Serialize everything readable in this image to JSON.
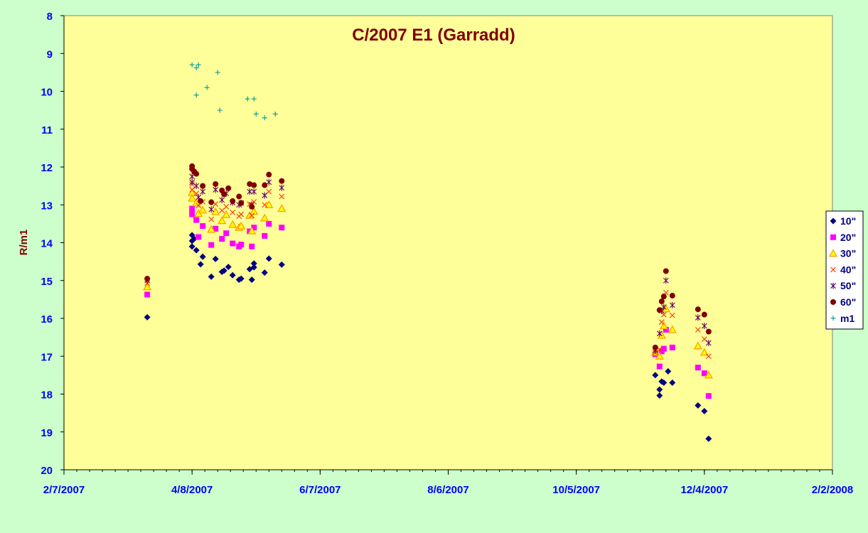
{
  "colors": {
    "chart_area": "#ccffcc",
    "plot_area": "#ffff99",
    "title": "#800000",
    "ylabel": "#800000",
    "ticks": "#0000ff",
    "axis": "#000000"
  },
  "chart_data": {
    "type": "scatter",
    "title": "C/2007 E1 (Garradd)",
    "xlabel": "",
    "ylabel": "R/m1",
    "x_axis": {
      "type": "date",
      "min": "2007-02-07",
      "max": "2008-02-02",
      "ticks": [
        "2/7/2007",
        "4/8/2007",
        "6/7/2007",
        "8/6/2007",
        "10/5/2007",
        "12/4/2007",
        "2/2/2008"
      ]
    },
    "y_axis": {
      "min": 8,
      "max": 20,
      "reversed": true,
      "ticks": [
        "8",
        "9",
        "10",
        "11",
        "12",
        "13",
        "14",
        "15",
        "16",
        "17",
        "18",
        "19",
        "20"
      ]
    },
    "grid": false,
    "legend_position": "right",
    "series": [
      {
        "name": "10\"",
        "color": "#000080",
        "marker": "diamond",
        "points": [
          [
            "2007-03-18",
            15.97
          ],
          [
            "2007-04-08",
            13.8
          ],
          [
            "2007-04-08",
            13.95
          ],
          [
            "2007-04-08",
            14.1
          ],
          [
            "2007-04-09",
            13.9
          ],
          [
            "2007-04-10",
            14.2
          ],
          [
            "2007-04-12",
            14.57
          ],
          [
            "2007-04-13",
            14.37
          ],
          [
            "2007-04-17",
            14.9
          ],
          [
            "2007-04-19",
            14.43
          ],
          [
            "2007-04-22",
            14.77
          ],
          [
            "2007-04-23",
            14.74
          ],
          [
            "2007-04-25",
            14.64
          ],
          [
            "2007-04-27",
            14.86
          ],
          [
            "2007-04-30",
            14.98
          ],
          [
            "2007-05-01",
            14.95
          ],
          [
            "2007-05-05",
            14.7
          ],
          [
            "2007-05-06",
            14.98
          ],
          [
            "2007-05-07",
            14.65
          ],
          [
            "2007-05-07",
            14.55
          ],
          [
            "2007-05-12",
            14.79
          ],
          [
            "2007-05-14",
            14.42
          ],
          [
            "2007-05-20",
            14.58
          ],
          [
            "2007-11-11",
            17.5
          ],
          [
            "2007-11-13",
            18.04
          ],
          [
            "2007-11-13",
            17.88
          ],
          [
            "2007-11-14",
            17.67
          ],
          [
            "2007-11-15",
            17.7
          ],
          [
            "2007-11-17",
            17.4
          ],
          [
            "2007-11-19",
            17.7
          ],
          [
            "2007-12-01",
            18.3
          ],
          [
            "2007-12-04",
            18.45
          ],
          [
            "2007-12-06",
            19.18
          ]
        ]
      },
      {
        "name": "20\"",
        "color": "#ff00ff",
        "marker": "square",
        "points": [
          [
            "2007-03-18",
            15.37
          ],
          [
            "2007-04-08",
            13.1
          ],
          [
            "2007-04-08",
            13.25
          ],
          [
            "2007-04-10",
            13.4
          ],
          [
            "2007-04-11",
            13.85
          ],
          [
            "2007-04-13",
            13.56
          ],
          [
            "2007-04-17",
            14.06
          ],
          [
            "2007-04-19",
            13.63
          ],
          [
            "2007-04-22",
            13.9
          ],
          [
            "2007-04-24",
            13.75
          ],
          [
            "2007-04-27",
            14.02
          ],
          [
            "2007-04-30",
            14.1
          ],
          [
            "2007-05-01",
            14.05
          ],
          [
            "2007-05-05",
            13.7
          ],
          [
            "2007-05-06",
            14.1
          ],
          [
            "2007-05-07",
            13.6
          ],
          [
            "2007-05-12",
            13.82
          ],
          [
            "2007-05-14",
            13.5
          ],
          [
            "2007-05-20",
            13.6
          ],
          [
            "2007-11-11",
            16.95
          ],
          [
            "2007-11-13",
            17.27
          ],
          [
            "2007-11-14",
            16.87
          ],
          [
            "2007-11-15",
            16.8
          ],
          [
            "2007-11-16",
            16.3
          ],
          [
            "2007-11-19",
            16.77
          ],
          [
            "2007-12-01",
            17.3
          ],
          [
            "2007-12-04",
            17.45
          ],
          [
            "2007-12-06",
            18.05
          ]
        ]
      },
      {
        "name": "30\"",
        "color": "#ff9900",
        "fill": "#ffff00",
        "marker": "triangle",
        "points": [
          [
            "2007-03-18",
            15.17
          ],
          [
            "2007-04-08",
            12.68
          ],
          [
            "2007-04-08",
            12.83
          ],
          [
            "2007-04-10",
            12.95
          ],
          [
            "2007-04-11",
            13.23
          ],
          [
            "2007-04-13",
            13.14
          ],
          [
            "2007-04-17",
            13.65
          ],
          [
            "2007-04-19",
            13.18
          ],
          [
            "2007-04-22",
            13.42
          ],
          [
            "2007-04-24",
            13.26
          ],
          [
            "2007-04-27",
            13.52
          ],
          [
            "2007-04-30",
            13.6
          ],
          [
            "2007-05-01",
            13.56
          ],
          [
            "2007-05-05",
            13.28
          ],
          [
            "2007-05-06",
            13.69
          ],
          [
            "2007-05-07",
            13.18
          ],
          [
            "2007-05-12",
            13.35
          ],
          [
            "2007-05-14",
            13.0
          ],
          [
            "2007-05-20",
            13.1
          ],
          [
            "2007-11-11",
            16.9
          ],
          [
            "2007-11-13",
            17.0
          ],
          [
            "2007-11-14",
            16.45
          ],
          [
            "2007-11-15",
            16.2
          ],
          [
            "2007-11-16",
            15.75
          ],
          [
            "2007-11-19",
            16.3
          ],
          [
            "2007-12-01",
            16.73
          ],
          [
            "2007-12-04",
            16.9
          ],
          [
            "2007-12-06",
            17.5
          ]
        ]
      },
      {
        "name": "40\"",
        "color": "#ff3300",
        "marker": "x",
        "points": [
          [
            "2007-03-18",
            15.07
          ],
          [
            "2007-04-08",
            12.45
          ],
          [
            "2007-04-08",
            12.6
          ],
          [
            "2007-04-10",
            12.7
          ],
          [
            "2007-04-11",
            13.02
          ],
          [
            "2007-04-13",
            12.92
          ],
          [
            "2007-04-17",
            13.38
          ],
          [
            "2007-04-19",
            12.98
          ],
          [
            "2007-04-22",
            13.15
          ],
          [
            "2007-04-24",
            13.05
          ],
          [
            "2007-04-27",
            13.2
          ],
          [
            "2007-04-30",
            13.3
          ],
          [
            "2007-05-01",
            13.25
          ],
          [
            "2007-05-05",
            12.98
          ],
          [
            "2007-05-06",
            13.28
          ],
          [
            "2007-05-07",
            12.92
          ],
          [
            "2007-05-12",
            13.0
          ],
          [
            "2007-05-14",
            12.65
          ],
          [
            "2007-05-20",
            12.78
          ],
          [
            "2007-11-11",
            16.9
          ],
          [
            "2007-11-13",
            16.82
          ],
          [
            "2007-11-14",
            16.1
          ],
          [
            "2007-11-15",
            15.9
          ],
          [
            "2007-11-16",
            15.32
          ],
          [
            "2007-11-19",
            15.92
          ],
          [
            "2007-12-01",
            16.3
          ],
          [
            "2007-12-04",
            16.55
          ],
          [
            "2007-12-06",
            17.0
          ]
        ]
      },
      {
        "name": "50\"",
        "color": "#660066",
        "marker": "star",
        "points": [
          [
            "2007-03-18",
            15.0
          ],
          [
            "2007-04-08",
            12.25
          ],
          [
            "2007-04-08",
            12.4
          ],
          [
            "2007-04-10",
            12.5
          ],
          [
            "2007-04-11",
            12.8
          ],
          [
            "2007-04-13",
            12.65
          ],
          [
            "2007-04-17",
            13.12
          ],
          [
            "2007-04-19",
            12.6
          ],
          [
            "2007-04-22",
            12.87
          ],
          [
            "2007-04-24",
            12.7
          ],
          [
            "2007-04-27",
            12.94
          ],
          [
            "2007-04-30",
            13.0
          ],
          [
            "2007-05-01",
            12.95
          ],
          [
            "2007-05-05",
            12.65
          ],
          [
            "2007-05-06",
            13.0
          ],
          [
            "2007-05-07",
            12.65
          ],
          [
            "2007-05-12",
            12.75
          ],
          [
            "2007-05-14",
            12.4
          ],
          [
            "2007-05-20",
            12.55
          ],
          [
            "2007-11-11",
            16.85
          ],
          [
            "2007-11-13",
            16.4
          ],
          [
            "2007-11-14",
            15.8
          ],
          [
            "2007-11-15",
            15.7
          ],
          [
            "2007-11-16",
            15.0
          ],
          [
            "2007-11-19",
            15.65
          ],
          [
            "2007-12-01",
            15.98
          ],
          [
            "2007-12-04",
            16.2
          ],
          [
            "2007-12-06",
            16.65
          ]
        ]
      },
      {
        "name": "60\"",
        "color": "#800000",
        "marker": "circle",
        "points": [
          [
            "2007-03-18",
            14.95
          ],
          [
            "2007-04-08",
            11.98
          ],
          [
            "2007-04-08",
            12.05
          ],
          [
            "2007-04-09",
            12.12
          ],
          [
            "2007-04-10",
            12.18
          ],
          [
            "2007-04-12",
            12.9
          ],
          [
            "2007-04-13",
            12.5
          ],
          [
            "2007-04-17",
            12.93
          ],
          [
            "2007-04-19",
            12.45
          ],
          [
            "2007-04-22",
            12.62
          ],
          [
            "2007-04-23",
            12.72
          ],
          [
            "2007-04-25",
            12.56
          ],
          [
            "2007-04-27",
            12.9
          ],
          [
            "2007-04-30",
            12.78
          ],
          [
            "2007-05-01",
            12.95
          ],
          [
            "2007-05-05",
            12.45
          ],
          [
            "2007-05-06",
            13.05
          ],
          [
            "2007-05-07",
            12.48
          ],
          [
            "2007-05-12",
            12.48
          ],
          [
            "2007-05-14",
            12.2
          ],
          [
            "2007-05-20",
            12.37
          ],
          [
            "2007-11-11",
            16.77
          ],
          [
            "2007-11-13",
            15.78
          ],
          [
            "2007-11-14",
            15.55
          ],
          [
            "2007-11-15",
            15.42
          ],
          [
            "2007-11-16",
            14.75
          ],
          [
            "2007-11-19",
            15.4
          ],
          [
            "2007-12-01",
            15.76
          ],
          [
            "2007-12-04",
            15.9
          ],
          [
            "2007-12-06",
            16.35
          ]
        ]
      },
      {
        "name": "m1",
        "color": "#009999",
        "marker": "plus",
        "points": [
          [
            "2007-04-08",
            9.3
          ],
          [
            "2007-04-10",
            9.38
          ],
          [
            "2007-04-11",
            9.3
          ],
          [
            "2007-04-10",
            10.1
          ],
          [
            "2007-04-15",
            9.9
          ],
          [
            "2007-04-20",
            9.5
          ],
          [
            "2007-04-21",
            10.5
          ],
          [
            "2007-05-04",
            10.2
          ],
          [
            "2007-05-07",
            10.2
          ],
          [
            "2007-05-08",
            10.6
          ],
          [
            "2007-05-12",
            10.7
          ],
          [
            "2007-05-17",
            10.6
          ]
        ]
      }
    ]
  }
}
